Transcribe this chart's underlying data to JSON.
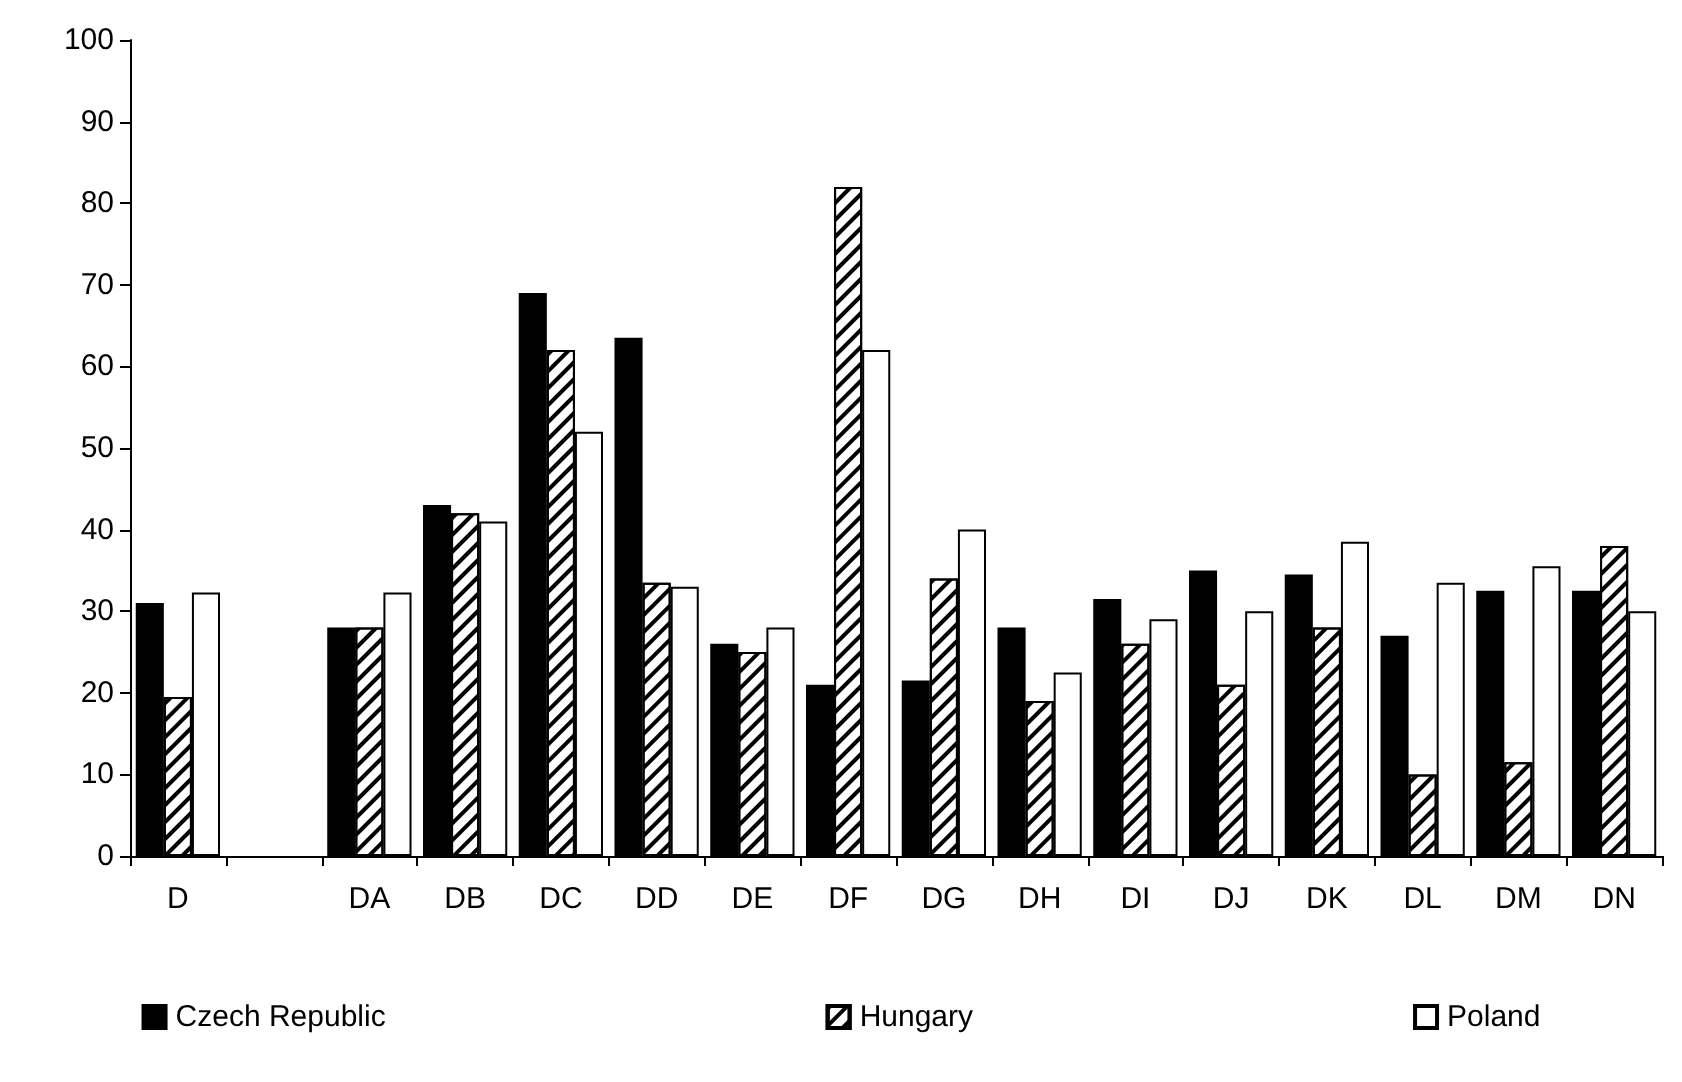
{
  "chart_data": {
    "type": "bar",
    "categories": [
      "D",
      null,
      "DA",
      "DB",
      "DC",
      "DD",
      "DE",
      "DF",
      "DG",
      "DH",
      "DI",
      "DJ",
      "DK",
      "DL",
      "DM",
      "DN"
    ],
    "series": [
      {
        "name": "Czech Republic",
        "color": "#000000",
        "values": [
          31,
          null,
          28,
          43,
          69,
          63.5,
          26,
          21,
          21.5,
          28,
          31.5,
          35,
          34.5,
          27,
          32.5,
          32.5
        ]
      },
      {
        "name": "Hungary",
        "color": "#ffffff",
        "values": [
          19.5,
          null,
          28,
          42,
          62,
          33.5,
          25,
          82,
          34,
          19,
          26,
          21,
          28,
          10,
          11.5,
          38
        ]
      },
      {
        "name": "Poland",
        "color": "#ffffff",
        "values": [
          32.3,
          null,
          32.3,
          41,
          52,
          33,
          28,
          62,
          40,
          22.5,
          29,
          30,
          38.5,
          33.5,
          35.5,
          30
        ]
      }
    ],
    "ylim": [
      0,
      100
    ],
    "yticks": [
      0,
      10,
      20,
      30,
      40,
      50,
      60,
      70,
      80,
      90,
      100
    ],
    "legend": "bottom",
    "grid": false
  }
}
